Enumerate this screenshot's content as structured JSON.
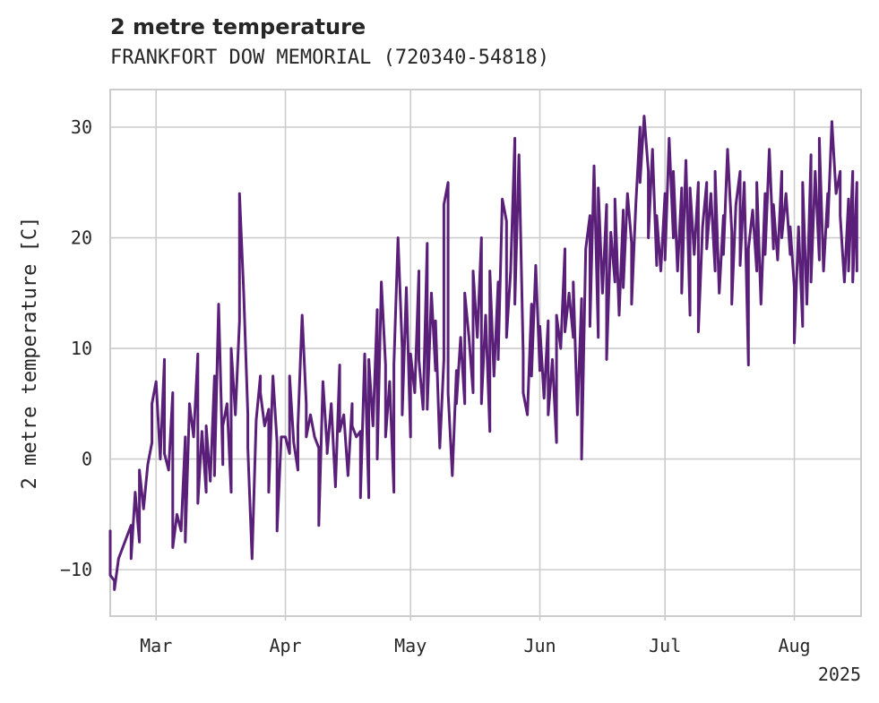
{
  "chart_data": {
    "type": "line",
    "title": "2 metre temperature",
    "subtitle": "FRANKFORT DOW MEMORIAL (720340-54818)",
    "ylabel": "2 metre temperature [C]",
    "xlabel": "",
    "x_tick_labels": [
      "Mar",
      "Apr",
      "May",
      "Jun",
      "Jul",
      "Aug"
    ],
    "x_year_label": "2025",
    "x_range": [
      "2025-02-18",
      "2025-08-17"
    ],
    "x_ticks": [
      "2025-03-01",
      "2025-04-01",
      "2025-05-01",
      "2025-06-01",
      "2025-07-01",
      "2025-08-01"
    ],
    "y_ticks": [
      -10,
      0,
      10,
      20,
      30
    ],
    "y_tick_labels": [
      "−10",
      "0",
      "10",
      "20",
      "30"
    ],
    "ylim": [
      -14.2,
      33.4
    ],
    "grid": true,
    "line_color": "#5a1f78",
    "series": [
      {
        "values": [
          [
            "2025-02-18",
            -6.5
          ],
          [
            "2025-02-18",
            -10.5
          ],
          [
            "2025-02-19",
            -11.0
          ],
          [
            "2025-02-19",
            -11.8
          ],
          [
            "2025-02-20",
            -9.0
          ],
          [
            "2025-02-21",
            -8.0
          ],
          [
            "2025-02-22",
            -7.0
          ],
          [
            "2025-02-23",
            -6.0
          ],
          [
            "2025-02-23",
            -9.0
          ],
          [
            "2025-02-24",
            -3.0
          ],
          [
            "2025-02-25",
            -7.5
          ],
          [
            "2025-02-25",
            -1.0
          ],
          [
            "2025-02-26",
            -4.5
          ],
          [
            "2025-02-27",
            -0.5
          ],
          [
            "2025-02-28",
            1.5
          ],
          [
            "2025-02-28",
            5.0
          ],
          [
            "2025-03-01",
            7.0
          ],
          [
            "2025-03-02",
            0.0
          ],
          [
            "2025-03-03",
            9.0
          ],
          [
            "2025-03-03",
            0.5
          ],
          [
            "2025-03-04",
            -1.0
          ],
          [
            "2025-03-05",
            6.0
          ],
          [
            "2025-03-05",
            -8.0
          ],
          [
            "2025-03-06",
            -5.0
          ],
          [
            "2025-03-07",
            -6.5
          ],
          [
            "2025-03-08",
            2.0
          ],
          [
            "2025-03-08",
            -7.5
          ],
          [
            "2025-03-09",
            5.0
          ],
          [
            "2025-03-10",
            2.0
          ],
          [
            "2025-03-11",
            9.5
          ],
          [
            "2025-03-11",
            -4.0
          ],
          [
            "2025-03-12",
            2.5
          ],
          [
            "2025-03-13",
            -3.0
          ],
          [
            "2025-03-13",
            3.0
          ],
          [
            "2025-03-14",
            -2.0
          ],
          [
            "2025-03-15",
            7.5
          ],
          [
            "2025-03-15",
            -1.5
          ],
          [
            "2025-03-16",
            14.0
          ],
          [
            "2025-03-17",
            -0.5
          ],
          [
            "2025-03-17",
            3.0
          ],
          [
            "2025-03-18",
            5.0
          ],
          [
            "2025-03-19",
            -3.0
          ],
          [
            "2025-03-19",
            10.0
          ],
          [
            "2025-03-20",
            4.0
          ],
          [
            "2025-03-21",
            12.5
          ],
          [
            "2025-03-21",
            24.0
          ],
          [
            "2025-03-22",
            15.0
          ],
          [
            "2025-03-23",
            4.0
          ],
          [
            "2025-03-23",
            1.0
          ],
          [
            "2025-03-24",
            -9.0
          ],
          [
            "2025-03-25",
            3.5
          ],
          [
            "2025-03-26",
            7.5
          ],
          [
            "2025-03-26",
            6.0
          ],
          [
            "2025-03-27",
            3.0
          ],
          [
            "2025-03-28",
            4.5
          ],
          [
            "2025-03-28",
            -3.0
          ],
          [
            "2025-03-29",
            7.5
          ],
          [
            "2025-03-30",
            1.5
          ],
          [
            "2025-03-30",
            -6.5
          ],
          [
            "2025-03-31",
            2.0
          ],
          [
            "2025-04-01",
            2.0
          ],
          [
            "2025-04-02",
            0.5
          ],
          [
            "2025-04-02",
            7.5
          ],
          [
            "2025-04-03",
            1.5
          ],
          [
            "2025-04-04",
            -1.0
          ],
          [
            "2025-04-04",
            3.0
          ],
          [
            "2025-04-05",
            13.0
          ],
          [
            "2025-04-06",
            5.0
          ],
          [
            "2025-04-06",
            2.0
          ],
          [
            "2025-04-07",
            4.0
          ],
          [
            "2025-04-08",
            2.0
          ],
          [
            "2025-04-09",
            1.0
          ],
          [
            "2025-04-09",
            -6.0
          ],
          [
            "2025-04-10",
            7.0
          ],
          [
            "2025-04-11",
            1.0
          ],
          [
            "2025-04-11",
            0.5
          ],
          [
            "2025-04-12",
            5.0
          ],
          [
            "2025-04-13",
            -2.5
          ],
          [
            "2025-04-14",
            8.5
          ],
          [
            "2025-04-14",
            2.5
          ],
          [
            "2025-04-15",
            4.0
          ],
          [
            "2025-04-16",
            -1.5
          ],
          [
            "2025-04-17",
            5.0
          ],
          [
            "2025-04-17",
            3.0
          ],
          [
            "2025-04-18",
            2.0
          ],
          [
            "2025-04-19",
            2.5
          ],
          [
            "2025-04-19",
            -3.5
          ],
          [
            "2025-04-20",
            9.5
          ],
          [
            "2025-04-21",
            -3.5
          ],
          [
            "2025-04-21",
            9.0
          ],
          [
            "2025-04-22",
            3.0
          ],
          [
            "2025-04-23",
            13.5
          ],
          [
            "2025-04-23",
            0.0
          ],
          [
            "2025-04-24",
            16.0
          ],
          [
            "2025-04-25",
            8.5
          ],
          [
            "2025-04-25",
            2.0
          ],
          [
            "2025-04-26",
            7.0
          ],
          [
            "2025-04-27",
            -3.0
          ],
          [
            "2025-04-27",
            8.5
          ],
          [
            "2025-04-28",
            20.0
          ],
          [
            "2025-04-29",
            10.0
          ],
          [
            "2025-04-29",
            4.0
          ],
          [
            "2025-04-30",
            15.5
          ],
          [
            "2025-05-01",
            2.0
          ],
          [
            "2025-05-01",
            9.5
          ],
          [
            "2025-05-02",
            6.0
          ],
          [
            "2025-05-03",
            17.0
          ],
          [
            "2025-05-03",
            9.0
          ],
          [
            "2025-05-04",
            4.5
          ],
          [
            "2025-05-05",
            19.5
          ],
          [
            "2025-05-05",
            4.5
          ],
          [
            "2025-05-06",
            15.0
          ],
          [
            "2025-05-07",
            8.0
          ],
          [
            "2025-05-07",
            12.5
          ],
          [
            "2025-05-08",
            1.0
          ],
          [
            "2025-05-09",
            9.0
          ],
          [
            "2025-05-09",
            23.0
          ],
          [
            "2025-05-10",
            25.0
          ],
          [
            "2025-05-10",
            6.0
          ],
          [
            "2025-05-11",
            -1.5
          ],
          [
            "2025-05-12",
            8.0
          ],
          [
            "2025-05-12",
            5.0
          ],
          [
            "2025-05-13",
            11.0
          ],
          [
            "2025-05-14",
            5.0
          ],
          [
            "2025-05-14",
            15.0
          ],
          [
            "2025-05-15",
            11.0
          ],
          [
            "2025-05-16",
            6.0
          ],
          [
            "2025-05-16",
            17.0
          ],
          [
            "2025-05-17",
            11.0
          ],
          [
            "2025-05-18",
            20.0
          ],
          [
            "2025-05-18",
            5.0
          ],
          [
            "2025-05-19",
            13.0
          ],
          [
            "2025-05-20",
            2.5
          ],
          [
            "2025-05-20",
            17.0
          ],
          [
            "2025-05-21",
            7.5
          ],
          [
            "2025-05-22",
            16.0
          ],
          [
            "2025-05-22",
            9.0
          ],
          [
            "2025-05-23",
            23.5
          ],
          [
            "2025-05-24",
            21.5
          ],
          [
            "2025-05-24",
            11.0
          ],
          [
            "2025-05-25",
            17.0
          ],
          [
            "2025-05-26",
            29.0
          ],
          [
            "2025-05-26",
            14.0
          ],
          [
            "2025-05-27",
            27.5
          ],
          [
            "2025-05-28",
            9.5
          ],
          [
            "2025-05-28",
            6.0
          ],
          [
            "2025-05-29",
            4.0
          ],
          [
            "2025-05-30",
            14.0
          ],
          [
            "2025-05-30",
            7.5
          ],
          [
            "2025-05-31",
            17.5
          ],
          [
            "2025-06-01",
            8.0
          ],
          [
            "2025-06-01",
            12.0
          ],
          [
            "2025-06-02",
            5.5
          ],
          [
            "2025-06-03",
            12.5
          ],
          [
            "2025-06-03",
            4.0
          ],
          [
            "2025-06-04",
            9.0
          ],
          [
            "2025-06-05",
            1.5
          ],
          [
            "2025-06-05",
            13.0
          ],
          [
            "2025-06-06",
            10.0
          ],
          [
            "2025-06-07",
            19.0
          ],
          [
            "2025-06-07",
            11.5
          ],
          [
            "2025-06-08",
            15.0
          ],
          [
            "2025-06-09",
            11.0
          ],
          [
            "2025-06-09",
            16.0
          ],
          [
            "2025-06-10",
            4.0
          ],
          [
            "2025-06-11",
            14.5
          ],
          [
            "2025-06-11",
            0.0
          ],
          [
            "2025-06-12",
            19.0
          ],
          [
            "2025-06-13",
            22.0
          ],
          [
            "2025-06-13",
            12.0
          ],
          [
            "2025-06-14",
            26.5
          ],
          [
            "2025-06-15",
            11.0
          ],
          [
            "2025-06-15",
            24.5
          ],
          [
            "2025-06-16",
            15.0
          ],
          [
            "2025-06-17",
            23.0
          ],
          [
            "2025-06-17",
            9.0
          ],
          [
            "2025-06-18",
            20.5
          ],
          [
            "2025-06-19",
            16.0
          ],
          [
            "2025-06-19",
            23.5
          ],
          [
            "2025-06-20",
            13.0
          ],
          [
            "2025-06-21",
            22.5
          ],
          [
            "2025-06-21",
            15.5
          ],
          [
            "2025-06-22",
            24.0
          ],
          [
            "2025-06-23",
            19.5
          ],
          [
            "2025-06-23",
            14.0
          ],
          [
            "2025-06-24",
            23.0
          ],
          [
            "2025-06-25",
            30.0
          ],
          [
            "2025-06-25",
            25.0
          ],
          [
            "2025-06-26",
            31.0
          ],
          [
            "2025-06-27",
            26.0
          ],
          [
            "2025-06-27",
            20.0
          ],
          [
            "2025-06-28",
            28.0
          ],
          [
            "2025-06-29",
            17.5
          ],
          [
            "2025-06-29",
            22.0
          ],
          [
            "2025-06-30",
            17.0
          ],
          [
            "2025-07-01",
            24.0
          ],
          [
            "2025-07-01",
            18.0
          ],
          [
            "2025-07-02",
            29.0
          ],
          [
            "2025-07-03",
            20.0
          ],
          [
            "2025-07-03",
            26.0
          ],
          [
            "2025-07-04",
            17.0
          ],
          [
            "2025-07-05",
            24.5
          ],
          [
            "2025-07-05",
            15.0
          ],
          [
            "2025-07-06",
            27.0
          ],
          [
            "2025-07-07",
            13.0
          ],
          [
            "2025-07-07",
            24.5
          ],
          [
            "2025-07-08",
            18.5
          ],
          [
            "2025-07-09",
            25.0
          ],
          [
            "2025-07-09",
            11.5
          ],
          [
            "2025-07-10",
            21.0
          ],
          [
            "2025-07-11",
            25.0
          ],
          [
            "2025-07-11",
            19.0
          ],
          [
            "2025-07-12",
            24.0
          ],
          [
            "2025-07-13",
            17.0
          ],
          [
            "2025-07-13",
            26.0
          ],
          [
            "2025-07-14",
            15.0
          ],
          [
            "2025-07-15",
            22.0
          ],
          [
            "2025-07-15",
            18.5
          ],
          [
            "2025-07-16",
            28.0
          ],
          [
            "2025-07-17",
            20.5
          ],
          [
            "2025-07-17",
            14.0
          ],
          [
            "2025-07-18",
            23.0
          ],
          [
            "2025-07-19",
            26.0
          ],
          [
            "2025-07-19",
            17.5
          ],
          [
            "2025-07-20",
            25.0
          ],
          [
            "2025-07-21",
            8.5
          ],
          [
            "2025-07-21",
            19.0
          ],
          [
            "2025-07-22",
            22.5
          ],
          [
            "2025-07-23",
            17.0
          ],
          [
            "2025-07-23",
            25.0
          ],
          [
            "2025-07-24",
            14.0
          ],
          [
            "2025-07-25",
            24.0
          ],
          [
            "2025-07-25",
            18.5
          ],
          [
            "2025-07-26",
            28.0
          ],
          [
            "2025-07-27",
            19.0
          ],
          [
            "2025-07-27",
            23.0
          ],
          [
            "2025-07-28",
            18.0
          ],
          [
            "2025-07-29",
            26.0
          ],
          [
            "2025-07-29",
            20.0
          ],
          [
            "2025-07-30",
            24.0
          ],
          [
            "2025-07-31",
            18.5
          ],
          [
            "2025-07-31",
            21.0
          ],
          [
            "2025-08-01",
            15.5
          ],
          [
            "2025-08-01",
            10.5
          ],
          [
            "2025-08-02",
            21.0
          ],
          [
            "2025-08-03",
            12.0
          ],
          [
            "2025-08-03",
            25.0
          ],
          [
            "2025-08-04",
            14.0
          ],
          [
            "2025-08-05",
            27.5
          ],
          [
            "2025-08-05",
            16.0
          ],
          [
            "2025-08-06",
            26.0
          ],
          [
            "2025-08-07",
            18.0
          ],
          [
            "2025-08-07",
            29.0
          ],
          [
            "2025-08-08",
            17.0
          ],
          [
            "2025-08-09",
            24.0
          ],
          [
            "2025-08-09",
            21.0
          ],
          [
            "2025-08-10",
            30.5
          ],
          [
            "2025-08-11",
            24.0
          ],
          [
            "2025-08-12",
            26.0
          ],
          [
            "2025-08-12",
            22.0
          ],
          [
            "2025-08-13",
            16.0
          ],
          [
            "2025-08-14",
            23.5
          ],
          [
            "2025-08-14",
            17.0
          ],
          [
            "2025-08-15",
            26.0
          ],
          [
            "2025-08-15",
            16.0
          ],
          [
            "2025-08-16",
            25.0
          ],
          [
            "2025-08-16",
            17.0
          ]
        ]
      }
    ]
  }
}
